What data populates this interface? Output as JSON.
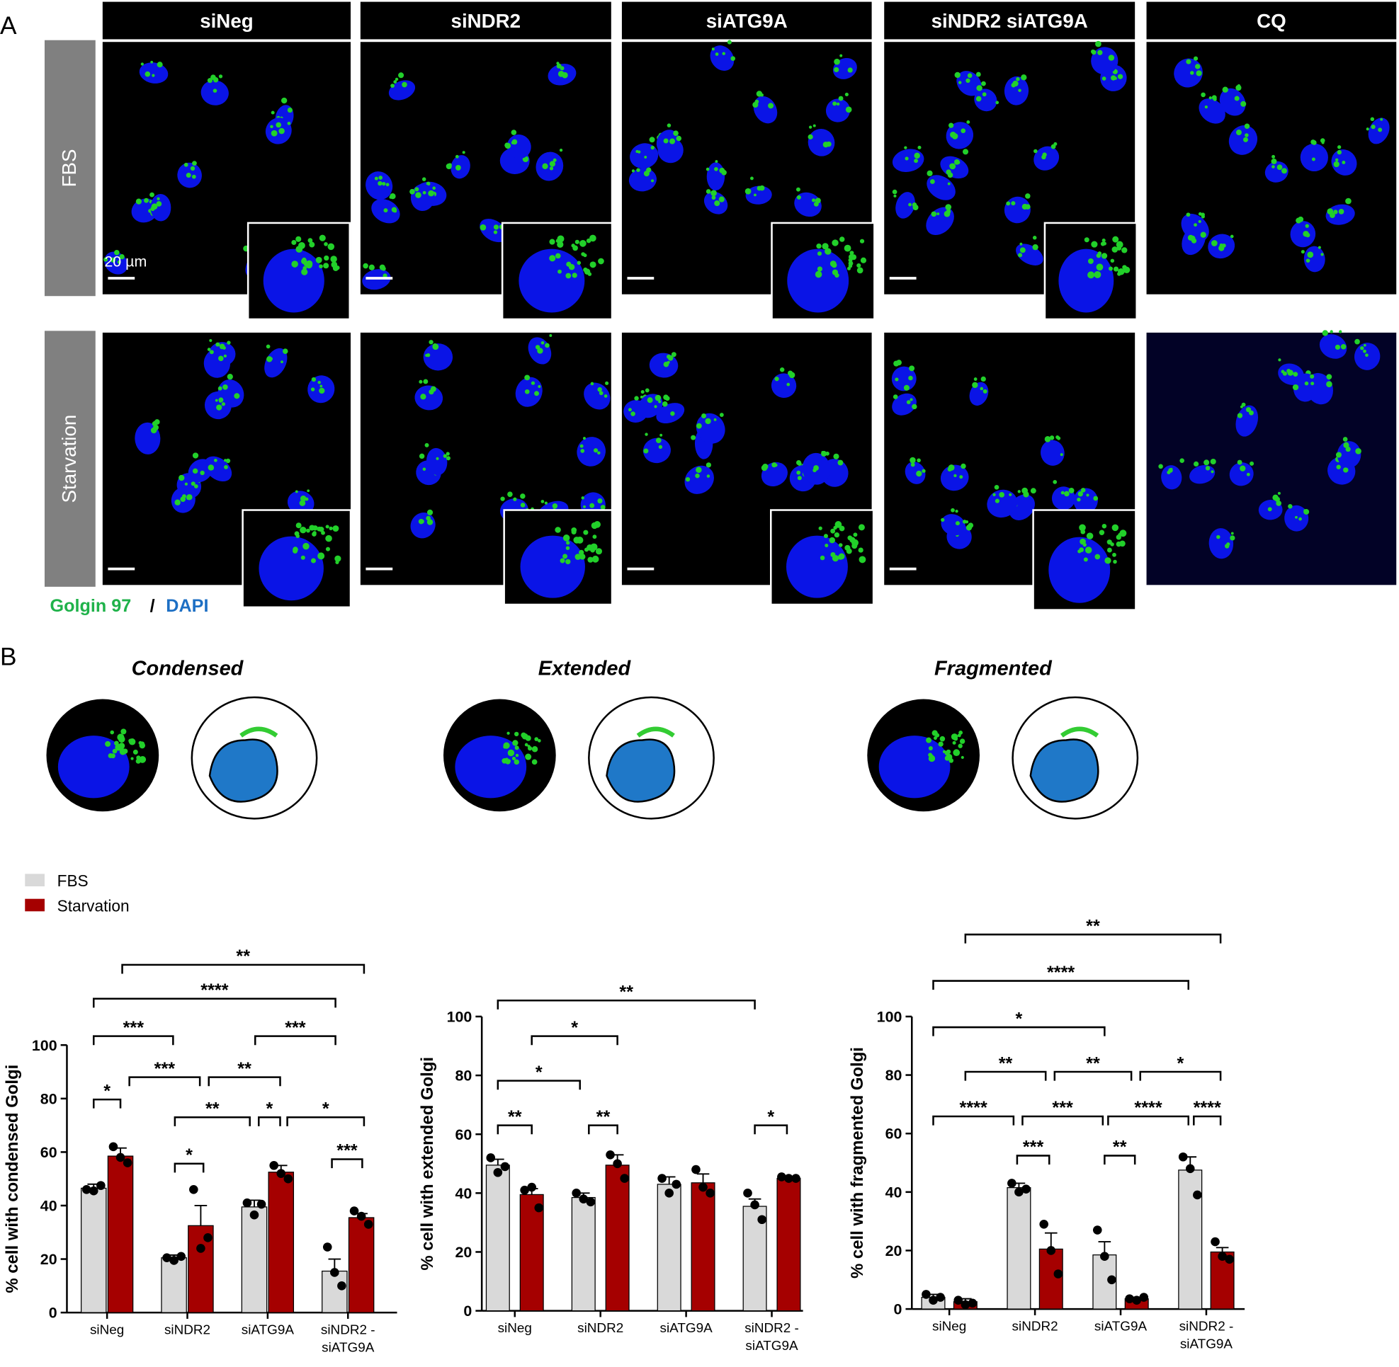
{
  "panel_labels": [
    "A",
    "B"
  ],
  "panel_a": {
    "columns": [
      "siNeg",
      "siNDR2",
      "siATG9A",
      "siNDR2 siATG9A",
      "CQ"
    ],
    "rows": [
      "FBS",
      "Starvation"
    ],
    "scale_bar": "20 µm",
    "stain": [
      "Golgin 97",
      "/",
      "DAPI"
    ]
  },
  "panel_b": {
    "morphologies": [
      "Condensed",
      "Extended",
      "Fragmented"
    ]
  },
  "chart_data": [
    {
      "type": "bar",
      "y_label": "% cell with condensed Golgi",
      "categories": [
        "siNeg",
        "siNDR2",
        "siATG9A",
        "siNDR2 - siATG9A"
      ],
      "series": [
        {
          "name": "FBS",
          "color": "#d9d9d9",
          "values": [
            46.5,
            20.5,
            39.5,
            15.5
          ],
          "errors": [
            1.5,
            1,
            2.5,
            4.5
          ],
          "points": [
            [
              46,
              45.5,
              47.5
            ],
            [
              20.5,
              19.5,
              21
            ],
            [
              41,
              36.5,
              40.5
            ],
            [
              24.5,
              15,
              10
            ]
          ]
        },
        {
          "name": "Starvation",
          "color": "#a50000",
          "values": [
            58.5,
            32.5,
            52.5,
            35.5
          ],
          "errors": [
            3,
            7.5,
            2.5,
            1.5
          ],
          "points": [
            [
              62,
              58,
              56
            ],
            [
              46,
              24,
              28
            ],
            [
              55,
              52,
              50
            ],
            [
              38,
              36,
              33
            ]
          ]
        }
      ],
      "ylim": [
        0,
        100
      ],
      "yticks": [
        0,
        20,
        40,
        60,
        80,
        100
      ],
      "significance": [
        "*",
        "*",
        "***",
        "**",
        "*",
        "*",
        "***",
        "**",
        "***",
        "***",
        "****",
        "**"
      ]
    },
    {
      "type": "bar",
      "y_label": "% cell with extended Golgi",
      "categories": [
        "siNeg",
        "siNDR2",
        "siATG9A",
        "siNDR2 - siATG9A"
      ],
      "series": [
        {
          "color": "#d9d9d9",
          "values": [
            49.5,
            38.5,
            43,
            35.5
          ],
          "errors": [
            2,
            1.5,
            2.5,
            2.5
          ],
          "points": [
            [
              52,
              47,
              49
            ],
            [
              40,
              38,
              37
            ],
            [
              45,
              40,
              43
            ],
            [
              40,
              36,
              31
            ]
          ]
        },
        {
          "color": "#a50000",
          "values": [
            39.5,
            49.5,
            43.5,
            45
          ],
          "errors": [
            2,
            3.5,
            3,
            0.5
          ],
          "points": [
            [
              41,
              42,
              35
            ],
            [
              53,
              50,
              45
            ],
            [
              48,
              42,
              40
            ],
            [
              45.5,
              45,
              45
            ]
          ]
        }
      ],
      "ylim": [
        0,
        100
      ],
      "yticks": [
        0,
        20,
        40,
        60,
        80,
        100
      ],
      "significance": [
        "**",
        "**",
        "*",
        "*",
        "*",
        "**"
      ]
    },
    {
      "type": "bar",
      "y_label": "% cell with fragmented Golgi",
      "categories": [
        "siNeg",
        "siNDR2",
        "siATG9A",
        "siNDR2 - siATG9A"
      ],
      "series": [
        {
          "color": "#d9d9d9",
          "values": [
            4,
            41.5,
            18.5,
            47.5
          ],
          "errors": [
            1,
            1.5,
            4.5,
            4.5
          ],
          "points": [
            [
              5,
              3,
              4
            ],
            [
              43,
              40,
              41
            ],
            [
              27,
              18,
              10
            ],
            [
              52,
              48,
              39
            ]
          ]
        },
        {
          "color": "#a50000",
          "values": [
            2.5,
            20.5,
            3.5,
            19.5
          ],
          "errors": [
            1,
            5.5,
            0.5,
            1.5
          ],
          "points": [
            [
              3,
              1.5,
              2
            ],
            [
              29,
              20,
              12
            ],
            [
              3.5,
              3,
              4
            ],
            [
              23,
              18,
              17
            ]
          ]
        }
      ],
      "ylim": [
        0,
        100
      ],
      "yticks": [
        0,
        20,
        40,
        60,
        80,
        100
      ],
      "significance": [
        "***",
        "**",
        "****",
        "***",
        "****",
        "****",
        "**",
        "**",
        "*",
        "*",
        "****",
        "**"
      ]
    }
  ]
}
